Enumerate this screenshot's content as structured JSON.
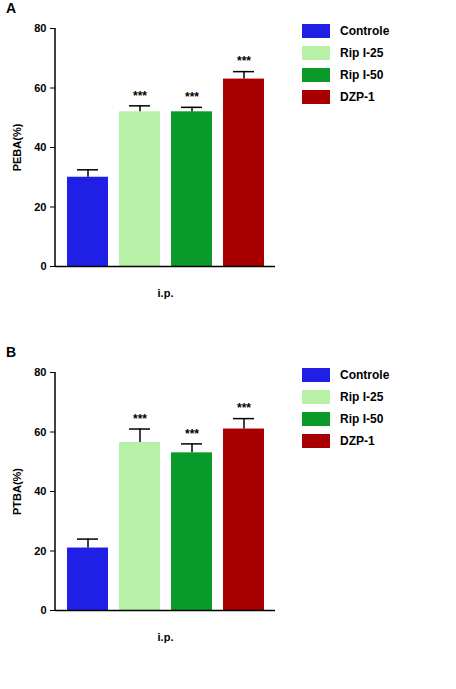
{
  "chart_data": [
    {
      "type": "bar",
      "title": "A",
      "x_label": "i.p.",
      "y_label": "PEBA(%)",
      "categories": [
        "Controle",
        "Rip I-25",
        "Rip I-50",
        "DZP-1"
      ],
      "values": [
        30,
        52,
        52,
        63
      ],
      "errors": [
        2.5,
        2,
        1.5,
        2.5
      ],
      "colors": [
        "#1f1fe6",
        "#b8f0a8",
        "#0a9a2a",
        "#a80000"
      ],
      "annotations": [
        {
          "category": "Rip I-25",
          "text": "***"
        },
        {
          "category": "Rip I-50",
          "text": "***"
        },
        {
          "category": "DZP-1",
          "text": "***"
        }
      ],
      "ylim": [
        0,
        80
      ],
      "yticks": [
        0,
        20,
        40,
        60,
        80
      ],
      "grid": false,
      "legend": "right",
      "tick_labels": "y"
    },
    {
      "type": "bar",
      "title": "B",
      "x_label": "i.p.",
      "y_label": "PTBA(%)",
      "categories": [
        "Controle",
        "Rip I-25",
        "Rip I-50",
        "DZP-1"
      ],
      "values": [
        21,
        56.5,
        53,
        61
      ],
      "errors": [
        3,
        4.5,
        3,
        3.5
      ],
      "colors": [
        "#1f1fe6",
        "#b8f0a8",
        "#0a9a2a",
        "#a80000"
      ],
      "annotations": [
        {
          "category": "Rip I-25",
          "text": "***"
        },
        {
          "category": "Rip I-50",
          "text": "***"
        },
        {
          "category": "DZP-1",
          "text": "***"
        }
      ],
      "ylim": [
        0,
        80
      ],
      "yticks": [
        0,
        20,
        40,
        60,
        80
      ],
      "grid": false,
      "legend": "right",
      "tick_labels": "y"
    }
  ]
}
